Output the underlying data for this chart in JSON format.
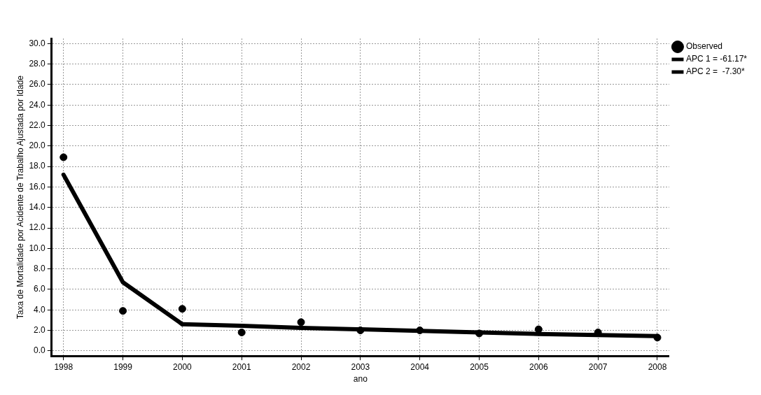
{
  "chart_data": {
    "type": "scatter",
    "xlabel": "ano",
    "ylabel": "Taxa de Mortalidade por Acidente de Trabalho Ajustada por Idade",
    "xlim": [
      1997.8,
      2008.2
    ],
    "xticks": [
      1998,
      1999,
      2000,
      2001,
      2002,
      2003,
      2004,
      2005,
      2006,
      2007,
      2008
    ],
    "ylim": [
      -0.5,
      30.5
    ],
    "yticks": [
      {
        "value": 0,
        "label": "0.0"
      },
      {
        "value": 2,
        "label": "2.0"
      },
      {
        "value": 4,
        "label": "4.0"
      },
      {
        "value": 6,
        "label": "6.0"
      },
      {
        "value": 8,
        "label": "8.0"
      },
      {
        "value": 10,
        "label": "10.0"
      },
      {
        "value": 12,
        "label": "12.0"
      },
      {
        "value": 14,
        "label": "14.0"
      },
      {
        "value": 16,
        "label": "16.0"
      },
      {
        "value": 18,
        "label": "18.0"
      },
      {
        "value": 20,
        "label": "20.0"
      },
      {
        "value": 22,
        "label": "22.0"
      },
      {
        "value": 24,
        "label": "24.0"
      },
      {
        "value": 26,
        "label": "26.0"
      },
      {
        "value": 28,
        "label": "28.0"
      },
      {
        "value": 30,
        "label": "30.0"
      }
    ],
    "grid": true,
    "legend": "top right",
    "series": [
      {
        "name": "Observed",
        "type": "scatter",
        "marker": "circle",
        "color": "#000000",
        "x": [
          1998,
          1999,
          2000,
          2001,
          2002,
          2003,
          2004,
          2005,
          2006,
          2007,
          2008
        ],
        "values": [
          18.9,
          3.9,
          4.1,
          1.8,
          2.8,
          2.0,
          2.0,
          1.7,
          2.1,
          1.8,
          1.3
        ]
      },
      {
        "name": "APC 1 = -61.17*",
        "type": "line",
        "marker": "none",
        "color": "#000000",
        "x": [
          1998,
          1999,
          2000
        ],
        "values": [
          17.2,
          6.7,
          2.6
        ]
      },
      {
        "name": "APC 2 =  -7.30*",
        "type": "line",
        "marker": "none",
        "color": "#000000",
        "x": [
          2000,
          2001,
          2002,
          2003,
          2004,
          2005,
          2006,
          2007,
          2008
        ],
        "values": [
          2.6,
          2.45,
          2.25,
          2.1,
          1.95,
          1.8,
          1.65,
          1.55,
          1.45
        ]
      }
    ]
  }
}
